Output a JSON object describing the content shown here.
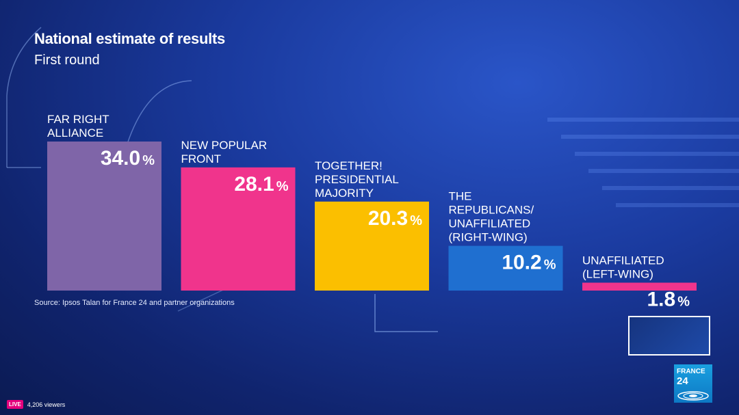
{
  "header": {
    "title": "National estimate of results",
    "subtitle": "First round"
  },
  "chart_data": {
    "type": "bar",
    "categories": [
      [
        "FAR RIGHT",
        "ALLIANCE"
      ],
      [
        "NEW POPULAR",
        "FRONT"
      ],
      [
        "TOGETHER!",
        "PRESIDENTIAL",
        "MAJORITY"
      ],
      [
        "THE",
        "REPUBLICANS/",
        "UNAFFILIATED",
        "(RIGHT-WING)"
      ],
      [
        "UNAFFILIATED",
        "(LEFT-WING)"
      ]
    ],
    "values": [
      34.0,
      28.1,
      20.3,
      10.2,
      1.8
    ],
    "value_labels": [
      "34.0",
      "28.1",
      "20.3",
      "10.2",
      "1.8"
    ],
    "unit": "%",
    "colors": [
      "#7f65a8",
      "#f0348c",
      "#fbbf00",
      "#1f6fd0",
      "#f0348c"
    ],
    "ylim": [
      0,
      34.0
    ],
    "grid": false
  },
  "source": "Source: Ipsos Talan for France 24 and partner organizations",
  "preview": {},
  "logo": {
    "line1": "FRANCE",
    "line2": "24"
  },
  "stream": {
    "live_label": "LIVE",
    "viewers": "4,206 viewers"
  }
}
